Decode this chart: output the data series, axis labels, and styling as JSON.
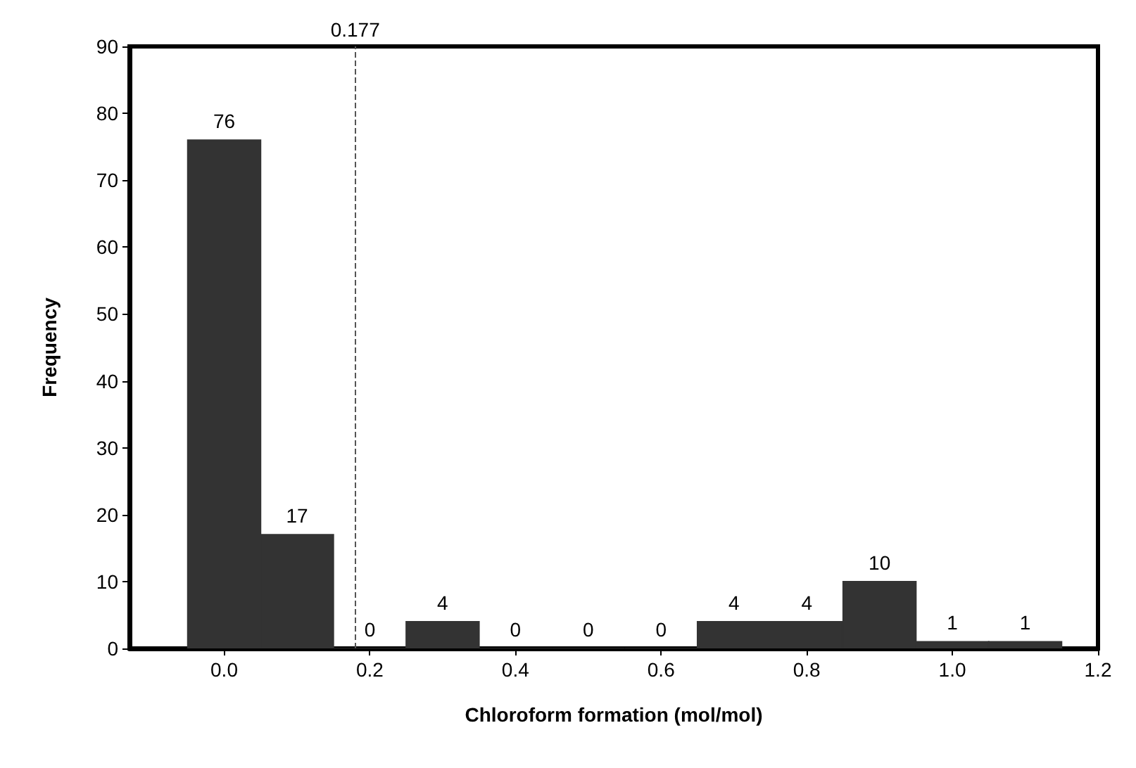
{
  "chart_data": {
    "type": "histogram",
    "xlabel": "Chloroform formation (mol/mol)",
    "ylabel": "Frequency",
    "bins": [
      -0.05,
      0.05,
      0.15,
      0.25,
      0.35,
      0.45,
      0.55,
      0.65,
      0.75,
      0.85,
      0.95,
      1.05,
      1.15
    ],
    "values": [
      76,
      17,
      0,
      4,
      0,
      0,
      0,
      4,
      4,
      10,
      1,
      1
    ],
    "color": "#333333",
    "xlim": [
      -0.13,
      1.2
    ],
    "xticks": [
      {
        "value": 0,
        "label": "0.0"
      },
      {
        "value": 0.2,
        "label": "0.2"
      },
      {
        "value": 0.4,
        "label": "0.4"
      },
      {
        "value": 0.6,
        "label": "0.6"
      },
      {
        "value": 0.8,
        "label": "0.8"
      },
      {
        "value": 1,
        "label": "1.0"
      },
      {
        "value": 1.2,
        "label": "1.2"
      }
    ],
    "ylim": [
      0,
      90
    ],
    "yticks": [
      0,
      10,
      20,
      30,
      40,
      50,
      60,
      70,
      80,
      90
    ],
    "ref_lines": [
      {
        "axis": "x",
        "value": 0.177,
        "label": "0.177",
        "line_style": "dashed",
        "color": "#555555"
      }
    ],
    "data_labels": true,
    "grid": false
  }
}
